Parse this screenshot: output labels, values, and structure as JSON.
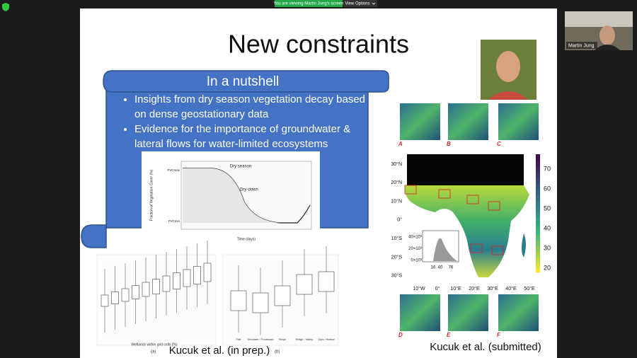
{
  "zoom": {
    "banner": "You are viewing Martin Jung's screen",
    "view_options": "View Options",
    "participant": "Martin Jung"
  },
  "slide": {
    "title": "New constraints",
    "nutshell": {
      "heading": "In a nutshell",
      "bullets": [
        "Insights from dry season vegetation decay based on dense geostationary data",
        "Evidence for the importance of groundwater & lateral flows for water-limited ecosystems"
      ]
    },
    "dry_season_figure": {
      "y_axis": "Fraction of Vegetation Cover (%)",
      "x_axis": "Time (days)",
      "labels": [
        "Dry season",
        "Dry-down"
      ],
      "levels": [
        "FVCmax",
        "FVCmin"
      ]
    },
    "boxplots": {
      "a_label": "(a)",
      "b_label": "(b)",
      "a_x_axis": "Wetlands within grid cells (%)",
      "b_categories": [
        "Flat",
        "Shoulder / Footslope",
        "Slope",
        "Ridge / Valley",
        "Dips / Hollow"
      ]
    },
    "citations": [
      "Kucuk et al. (in prep.)",
      "Kucuk et al. (submitted)"
    ],
    "map": {
      "panels": [
        "A",
        "B",
        "C",
        "D",
        "E",
        "F"
      ],
      "lat_labels": [
        "30°N",
        "20°N",
        "10°N",
        "0°",
        "10°S",
        "20°S",
        "30°S"
      ],
      "lon_labels": [
        "10°W",
        "0°",
        "10°E",
        "20°E",
        "30°E",
        "40°E",
        "50°E"
      ],
      "colorbar_ticks": [
        70,
        60,
        50,
        40,
        30,
        20
      ],
      "inset_x": [
        "16",
        "40",
        "76"
      ],
      "inset_y": [
        "40×10³",
        "20×10³",
        "0×10³"
      ]
    }
  }
}
